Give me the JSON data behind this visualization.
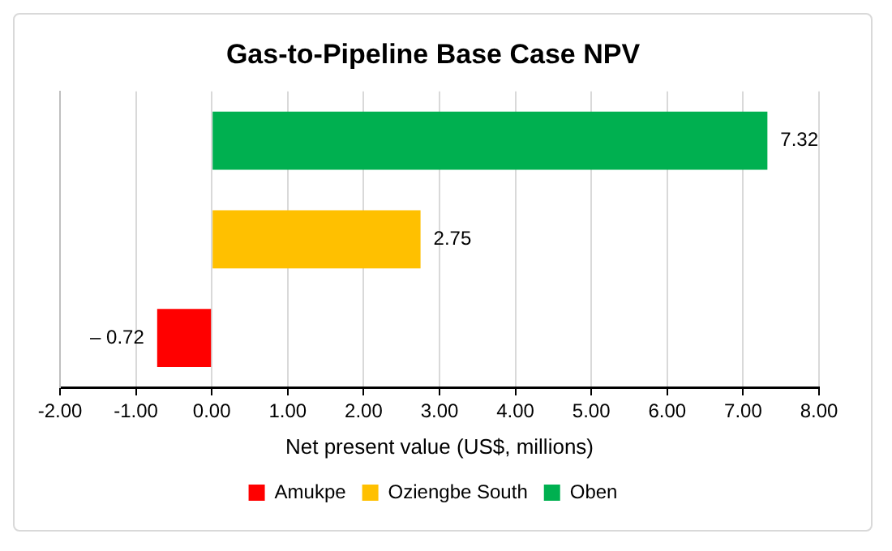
{
  "chart_data": {
    "type": "bar",
    "orientation": "horizontal",
    "title": "Gas-to-Pipeline Base Case NPV",
    "xlabel": "Net present value (US$, millions)",
    "categories": [
      null,
      null,
      null
    ],
    "series": [
      {
        "name": "Amukpe",
        "color": "#ff0000",
        "values": [
          null,
          null,
          -0.72
        ],
        "value_labels": [
          null,
          null,
          "– 0.72"
        ]
      },
      {
        "name": "Oziengbe South",
        "color": "#ffc000",
        "values": [
          null,
          2.75,
          null
        ],
        "value_labels": [
          null,
          "2.75",
          null
        ]
      },
      {
        "name": "Oben",
        "color": "#00b050",
        "values": [
          7.32,
          null,
          null
        ],
        "value_labels": [
          "7.32",
          null,
          null
        ]
      }
    ],
    "xlim": [
      -2,
      8
    ],
    "xticks": [
      {
        "value": -2,
        "label": "-2.00"
      },
      {
        "value": -1,
        "label": "-1.00"
      },
      {
        "value": 0,
        "label": "0.00"
      },
      {
        "value": 1,
        "label": "1.00"
      },
      {
        "value": 2,
        "label": "2.00"
      },
      {
        "value": 3,
        "label": "3.00"
      },
      {
        "value": 4,
        "label": "4.00"
      },
      {
        "value": 5,
        "label": "5.00"
      },
      {
        "value": 6,
        "label": "6.00"
      },
      {
        "value": 7,
        "label": "7.00"
      },
      {
        "value": 8,
        "label": "8.00"
      }
    ],
    "grid": "x",
    "legend": "bottom"
  }
}
